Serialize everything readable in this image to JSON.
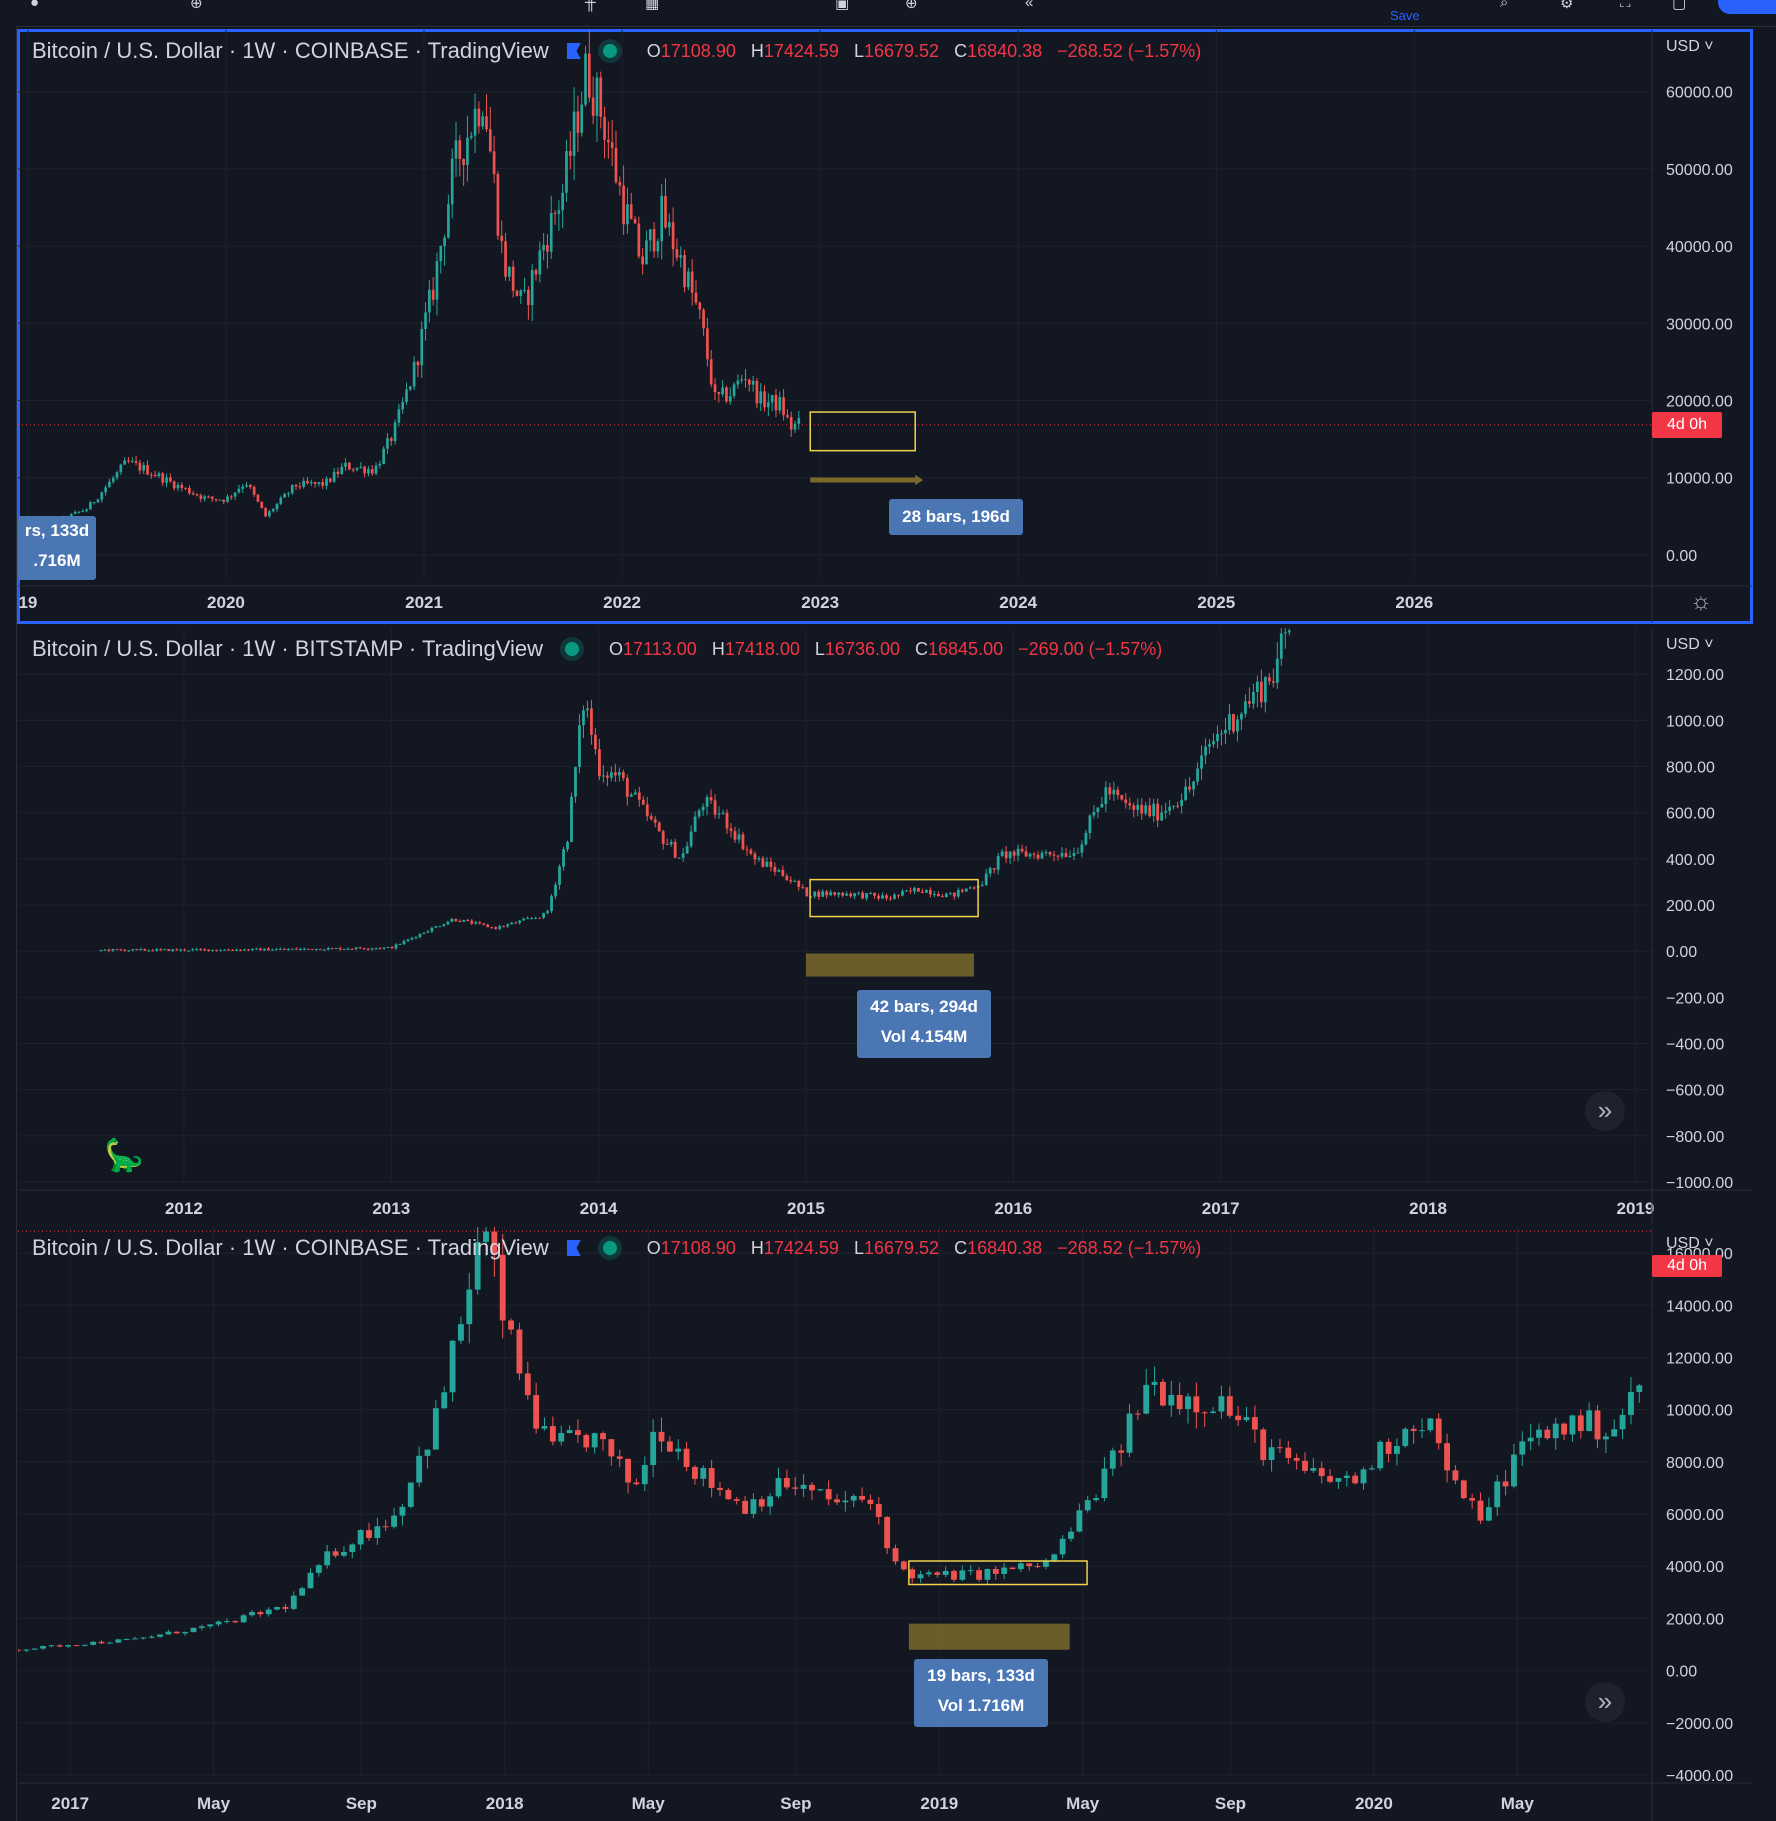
{
  "toolbar": {
    "save_label": "Save"
  },
  "panes": [
    {
      "id": "coinbase-top",
      "title": "Bitcoin / U.S. Dollar · 1W · COINBASE · TradingView",
      "ohlc": {
        "o": "17108.90",
        "h": "17424.59",
        "l": "16679.52",
        "c": "16840.38",
        "chg": "−268.52 (−1.57%)"
      },
      "currency": "USD",
      "timer": "4d 0h",
      "measure_main": {
        "line1": "28 bars, 196d",
        "line2": ""
      },
      "measure_clipped": {
        "line1": "rs, 133d",
        "line2": ".716M"
      }
    },
    {
      "id": "bitstamp-middle",
      "title": "Bitcoin / U.S. Dollar · 1W · BITSTAMP · TradingView",
      "ohlc": {
        "o": "17113.00",
        "h": "17418.00",
        "l": "16736.00",
        "c": "16845.00",
        "chg": "−269.00 (−1.57%)"
      },
      "currency": "USD",
      "measure_main": {
        "line1": "42 bars, 294d",
        "line2": "Vol 4.154M"
      }
    },
    {
      "id": "coinbase-bottom",
      "title": "Bitcoin / U.S. Dollar · 1W · COINBASE · TradingView",
      "ohlc": {
        "o": "17108.90",
        "h": "17424.59",
        "l": "16679.52",
        "c": "16840.38",
        "chg": "−268.52 (−1.57%)"
      },
      "currency": "USD",
      "timer": "4d 0h",
      "measure_main": {
        "line1": "19 bars, 133d",
        "line2": "Vol 1.716M"
      }
    }
  ],
  "chart_data": [
    {
      "type": "candlestick",
      "title": "Bitcoin / U.S. Dollar · 1W · COINBASE · TradingView",
      "ylim": [
        -3000,
        68000
      ],
      "y_ticks": [
        "60000.00",
        "50000.00",
        "40000.00",
        "30000.00",
        "20000.00",
        "10000.00",
        "0.00"
      ],
      "y_tick_values": [
        60000,
        50000,
        40000,
        30000,
        20000,
        10000,
        0
      ],
      "x_ticks": [
        "19",
        "2020",
        "2021",
        "2022",
        "2023",
        "2024",
        "2025",
        "2026"
      ],
      "x_tick_values": [
        2019.0,
        2020.0,
        2021.0,
        2022.0,
        2023.0,
        2024.0,
        2025.0,
        2026.0
      ],
      "xlim": [
        2018.95,
        2027.2
      ],
      "price_line": 16840.38,
      "path_points": [
        [
          2018.95,
          3500
        ],
        [
          2019.1,
          3800
        ],
        [
          2019.3,
          6000
        ],
        [
          2019.5,
          12000
        ],
        [
          2019.6,
          11000
        ],
        [
          2019.75,
          9000
        ],
        [
          2019.9,
          7300
        ],
        [
          2020.0,
          7200
        ],
        [
          2020.1,
          9500
        ],
        [
          2020.2,
          5000
        ],
        [
          2020.35,
          9000
        ],
        [
          2020.5,
          9200
        ],
        [
          2020.6,
          11500
        ],
        [
          2020.75,
          11000
        ],
        [
          2020.85,
          16000
        ],
        [
          2020.95,
          24000
        ],
        [
          2021.05,
          35000
        ],
        [
          2021.15,
          50000
        ],
        [
          2021.3,
          60000
        ],
        [
          2021.4,
          38000
        ],
        [
          2021.5,
          32000
        ],
        [
          2021.6,
          40000
        ],
        [
          2021.7,
          47000
        ],
        [
          2021.82,
          63000
        ],
        [
          2021.9,
          57000
        ],
        [
          2022.0,
          46000
        ],
        [
          2022.1,
          38000
        ],
        [
          2022.2,
          44000
        ],
        [
          2022.3,
          38000
        ],
        [
          2022.4,
          30000
        ],
        [
          2022.47,
          20000
        ],
        [
          2022.55,
          21000
        ],
        [
          2022.62,
          23500
        ],
        [
          2022.7,
          20000
        ],
        [
          2022.8,
          19500
        ],
        [
          2022.85,
          16500
        ],
        [
          2022.9,
          17000
        ]
      ],
      "box_x": [
        2022.95,
        2023.48
      ],
      "box_y": [
        13500,
        18500
      ],
      "arrow_x": [
        2022.95,
        2023.48
      ],
      "arrow_y": 9700
    },
    {
      "type": "candlestick",
      "title": "Bitcoin / U.S. Dollar · 1W · BITSTAMP · TradingView",
      "ylim": [
        -1000,
        1400
      ],
      "y_ticks": [
        "1200.00",
        "1000.00",
        "800.00",
        "600.00",
        "400.00",
        "200.00",
        "0.00",
        "−200.00",
        "−400.00",
        "−600.00",
        "−800.00",
        "−1000.00"
      ],
      "y_tick_values": [
        1200,
        1000,
        800,
        600,
        400,
        200,
        0,
        -200,
        -400,
        -600,
        -800,
        -1000
      ],
      "x_ticks": [
        "2012",
        "2013",
        "2014",
        "2015",
        "2016",
        "2017",
        "2018",
        "2019"
      ],
      "x_tick_values": [
        2012,
        2013,
        2014,
        2015,
        2016,
        2017,
        2018,
        2019
      ],
      "xlim": [
        2011.2,
        2019.08
      ],
      "path_points": [
        [
          2011.6,
          5
        ],
        [
          2012.0,
          5
        ],
        [
          2012.5,
          8
        ],
        [
          2013.0,
          15
        ],
        [
          2013.2,
          100
        ],
        [
          2013.3,
          140
        ],
        [
          2013.5,
          100
        ],
        [
          2013.75,
          160
        ],
        [
          2013.85,
          500
        ],
        [
          2013.93,
          1100
        ],
        [
          2014.0,
          800
        ],
        [
          2014.1,
          750
        ],
        [
          2014.3,
          500
        ],
        [
          2014.4,
          400
        ],
        [
          2014.5,
          650
        ],
        [
          2014.6,
          580
        ],
        [
          2014.75,
          400
        ],
        [
          2014.9,
          330
        ],
        [
          2015.0,
          250
        ],
        [
          2015.2,
          250
        ],
        [
          2015.4,
          230
        ],
        [
          2015.55,
          270
        ],
        [
          2015.7,
          240
        ],
        [
          2015.85,
          300
        ],
        [
          2015.95,
          420
        ],
        [
          2016.1,
          420
        ],
        [
          2016.3,
          430
        ],
        [
          2016.45,
          700
        ],
        [
          2016.55,
          620
        ],
        [
          2016.7,
          600
        ],
        [
          2016.85,
          700
        ],
        [
          2016.95,
          900
        ],
        [
          2017.05,
          1000
        ],
        [
          2017.15,
          1100
        ],
        [
          2017.25,
          1200
        ],
        [
          2017.33,
          1400
        ]
      ],
      "box_x": [
        2015.02,
        2015.83
      ],
      "box_y": [
        150,
        310
      ],
      "range_x": [
        2015.0,
        2015.81
      ],
      "range_y": [
        -110,
        -10
      ]
    },
    {
      "type": "candlestick",
      "title": "Bitcoin / U.S. Dollar · 1W · COINBASE · TradingView",
      "ylim": [
        -4000,
        17000
      ],
      "y_ticks": [
        "16000.00",
        "14000.00",
        "12000.00",
        "10000.00",
        "8000.00",
        "6000.00",
        "4000.00",
        "2000.00",
        "0.00",
        "−2000.00",
        "−4000.00"
      ],
      "y_tick_values": [
        16000,
        14000,
        12000,
        10000,
        8000,
        6000,
        4000,
        2000,
        0,
        -2000,
        -4000
      ],
      "x_ticks": [
        "2017",
        "May",
        "Sep",
        "2018",
        "May",
        "Sep",
        "2019",
        "May",
        "Sep",
        "2020",
        "May"
      ],
      "x_tick_values": [
        2017.0,
        2017.33,
        2017.67,
        2018.0,
        2018.33,
        2018.67,
        2019.0,
        2019.33,
        2019.67,
        2020.0,
        2020.33
      ],
      "xlim": [
        2016.88,
        2020.64
      ],
      "price_line": 16840.38,
      "path_points": [
        [
          2016.88,
          800
        ],
        [
          2017.0,
          1000
        ],
        [
          2017.15,
          1200
        ],
        [
          2017.35,
          1800
        ],
        [
          2017.5,
          2500
        ],
        [
          2017.6,
          4500
        ],
        [
          2017.75,
          6000
        ],
        [
          2017.85,
          10000
        ],
        [
          2017.95,
          17000
        ],
        [
          2018.02,
          12000
        ],
        [
          2018.1,
          8500
        ],
        [
          2018.2,
          9000
        ],
        [
          2018.3,
          7000
        ],
        [
          2018.35,
          9500
        ],
        [
          2018.45,
          7500
        ],
        [
          2018.55,
          6300
        ],
        [
          2018.65,
          7200
        ],
        [
          2018.75,
          6500
        ],
        [
          2018.85,
          6400
        ],
        [
          2018.9,
          4000
        ],
        [
          2018.95,
          3600
        ],
        [
          2019.1,
          3700
        ],
        [
          2019.25,
          4100
        ],
        [
          2019.3,
          5300
        ],
        [
          2019.4,
          8000
        ],
        [
          2019.48,
          11000
        ],
        [
          2019.55,
          10500
        ],
        [
          2019.65,
          10300
        ],
        [
          2019.75,
          8500
        ],
        [
          2019.85,
          7500
        ],
        [
          2019.95,
          7200
        ],
        [
          2020.05,
          9000
        ],
        [
          2020.12,
          9800
        ],
        [
          2020.2,
          6500
        ],
        [
          2020.25,
          6000
        ],
        [
          2020.35,
          8800
        ],
        [
          2020.45,
          9500
        ],
        [
          2020.55,
          9300
        ],
        [
          2020.62,
          11000
        ]
      ],
      "box_x": [
        2018.93,
        2019.34
      ],
      "box_y": [
        3300,
        4200
      ],
      "range_x": [
        2018.93,
        2019.3
      ],
      "range_y": [
        800,
        1800
      ]
    }
  ]
}
